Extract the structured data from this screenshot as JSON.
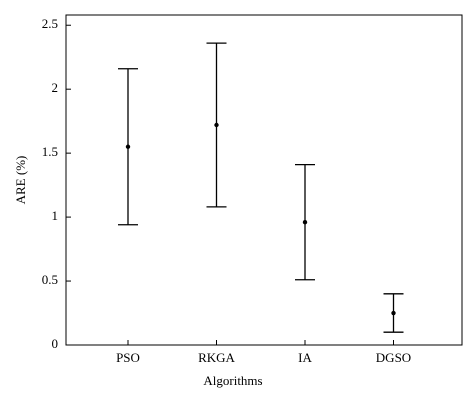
{
  "chart_data": {
    "type": "errorbar",
    "x_label": "Algorithms",
    "y_label": "ARE (%)",
    "categories": [
      "PSO",
      "RKGA",
      "IA",
      "DGSO"
    ],
    "values": [
      1.55,
      1.72,
      0.96,
      0.25
    ],
    "errors": [
      0.61,
      0.64,
      0.45,
      0.15
    ],
    "color": "#000000",
    "ylim": [
      0,
      2.58
    ],
    "yticks": [
      0,
      0.5,
      1,
      1.5,
      2,
      2.5
    ]
  }
}
